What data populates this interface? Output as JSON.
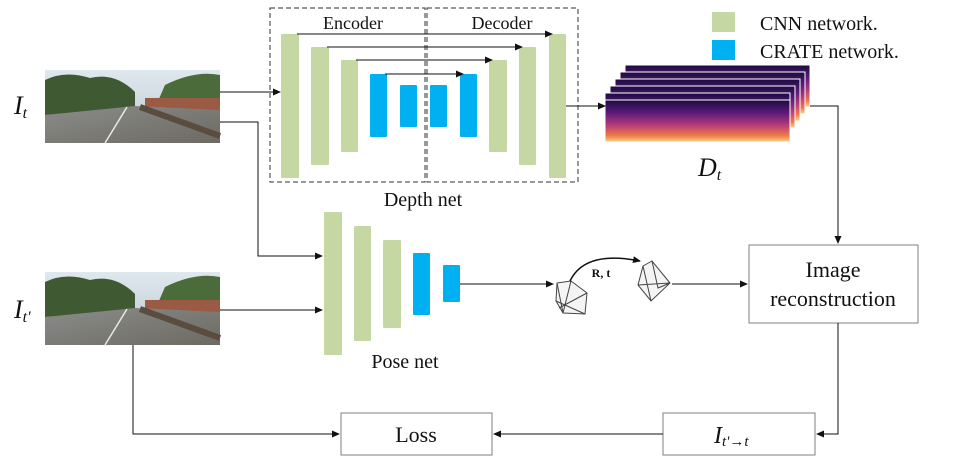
{
  "labels": {
    "input_t": "I",
    "input_t_sub": "t",
    "input_tp": "I",
    "input_tp_sub": "t'",
    "encoder": "Encoder",
    "decoder": "Decoder",
    "depth_net": "Depth net",
    "pose_net": "Pose net",
    "depth_output": "D",
    "depth_output_sub": "t",
    "rt": "R, t",
    "image_reconstruction_line1": "Image",
    "image_reconstruction_line2": "reconstruction",
    "warped": "I",
    "warped_sub": "t'→t",
    "loss": "Loss"
  },
  "legend": [
    {
      "label": "CNN network.",
      "color": "#c5d8a4"
    },
    {
      "label": "CRATE network.",
      "color": "#00b0f0"
    }
  ],
  "colors": {
    "cnn": "#c5d8a4",
    "crate": "#00b0f0",
    "line": "#222222",
    "box_border": "#7f7f7f"
  }
}
